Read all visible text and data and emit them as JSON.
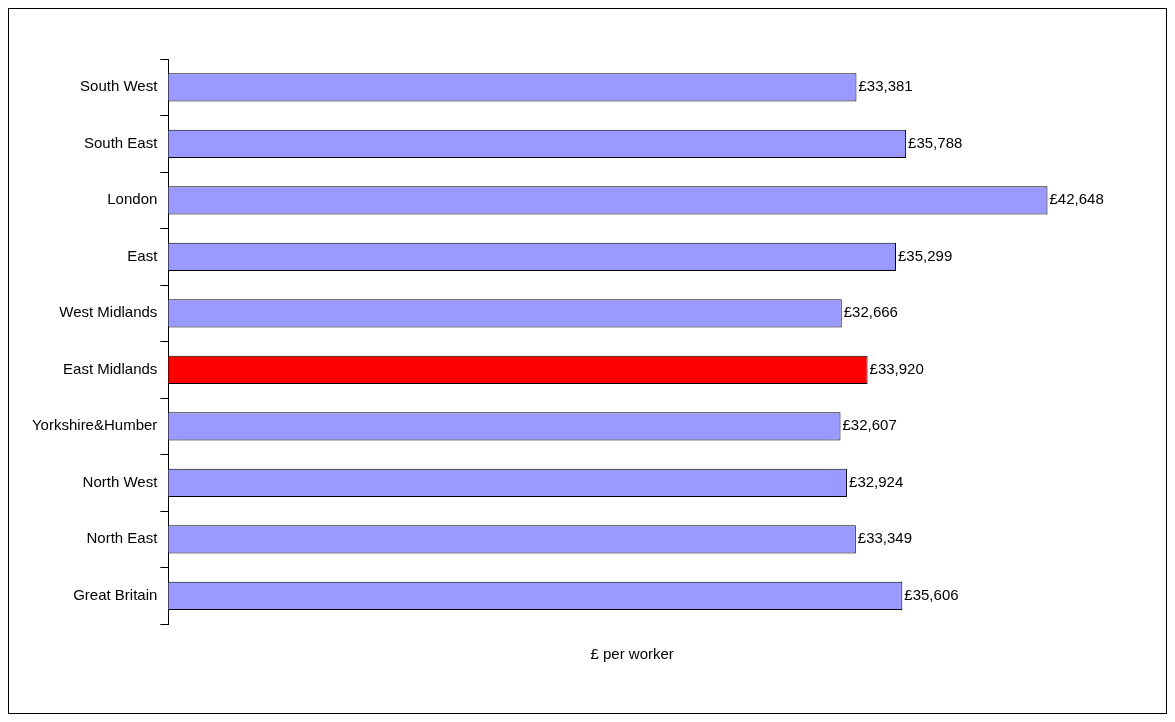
{
  "chart_data": {
    "type": "bar",
    "orientation": "horizontal",
    "relative": false,
    "categories": [
      "South West",
      "South East",
      "London",
      "East",
      "West Midlands",
      "East Midlands",
      "Yorkshire&Humber",
      "North West",
      "North East",
      "Great Britain"
    ],
    "values": [
      33381,
      35788,
      42648,
      35299,
      32666,
      33920,
      32607,
      32924,
      33349,
      35606
    ],
    "colors": [
      "#9999ff",
      "#9999ff",
      "#9999ff",
      "#9999ff",
      "#9999ff",
      "#ff0000",
      "#9999ff",
      "#9999ff",
      "#9999ff",
      "#9999ff"
    ],
    "value_labels": [
      "£33,381",
      "£35,788",
      "£42,648",
      "£35,299",
      "£32,666",
      "£33,920",
      "£32,607",
      "£32,924",
      "£33,349",
      "£35,606"
    ],
    "xlabel": "£ per worker",
    "grid": false,
    "legend": false
  }
}
